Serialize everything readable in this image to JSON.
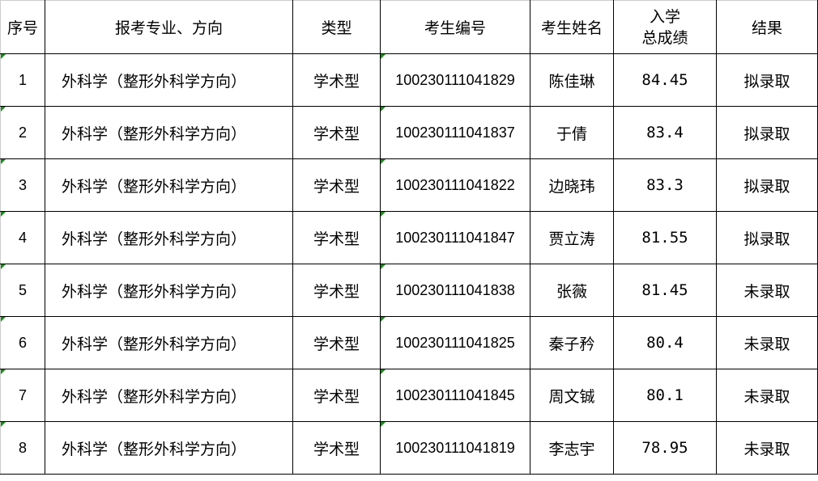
{
  "headers": {
    "index": "序号",
    "major": "报考专业、方向",
    "type": "类型",
    "exam_id": "考生编号",
    "name": "考生姓名",
    "score_line1": "入学",
    "score_line2": "总成绩",
    "result": "结果"
  },
  "rows": [
    {
      "index": "1",
      "major": "外科学（整形外科学方向）",
      "type": "学术型",
      "exam_id": "100230111041829",
      "name": "陈佳琳",
      "score": "84.45",
      "result": "拟录取"
    },
    {
      "index": "2",
      "major": "外科学（整形外科学方向）",
      "type": "学术型",
      "exam_id": "100230111041837",
      "name": "于倩",
      "score": "83.4",
      "result": "拟录取"
    },
    {
      "index": "3",
      "major": "外科学（整形外科学方向）",
      "type": "学术型",
      "exam_id": "100230111041822",
      "name": "边晓玮",
      "score": "83.3",
      "result": "拟录取"
    },
    {
      "index": "4",
      "major": "外科学（整形外科学方向）",
      "type": "学术型",
      "exam_id": "100230111041847",
      "name": "贾立涛",
      "score": "81.55",
      "result": "拟录取"
    },
    {
      "index": "5",
      "major": "外科学（整形外科学方向）",
      "type": "学术型",
      "exam_id": "100230111041838",
      "name": "张薇",
      "score": "81.45",
      "result": "未录取"
    },
    {
      "index": "6",
      "major": "外科学（整形外科学方向）",
      "type": "学术型",
      "exam_id": "100230111041825",
      "name": "秦子矜",
      "score": "80.4",
      "result": "未录取"
    },
    {
      "index": "7",
      "major": "外科学（整形外科学方向）",
      "type": "学术型",
      "exam_id": "100230111041845",
      "name": "周文铖",
      "score": "80.1",
      "result": "未录取"
    },
    {
      "index": "8",
      "major": "外科学（整形外科学方向）",
      "type": "学术型",
      "exam_id": "100230111041819",
      "name": "李志宇",
      "score": "78.95",
      "result": "未录取"
    }
  ],
  "colors": {
    "text_marker": "#1a8a1a",
    "border": "#000000"
  }
}
